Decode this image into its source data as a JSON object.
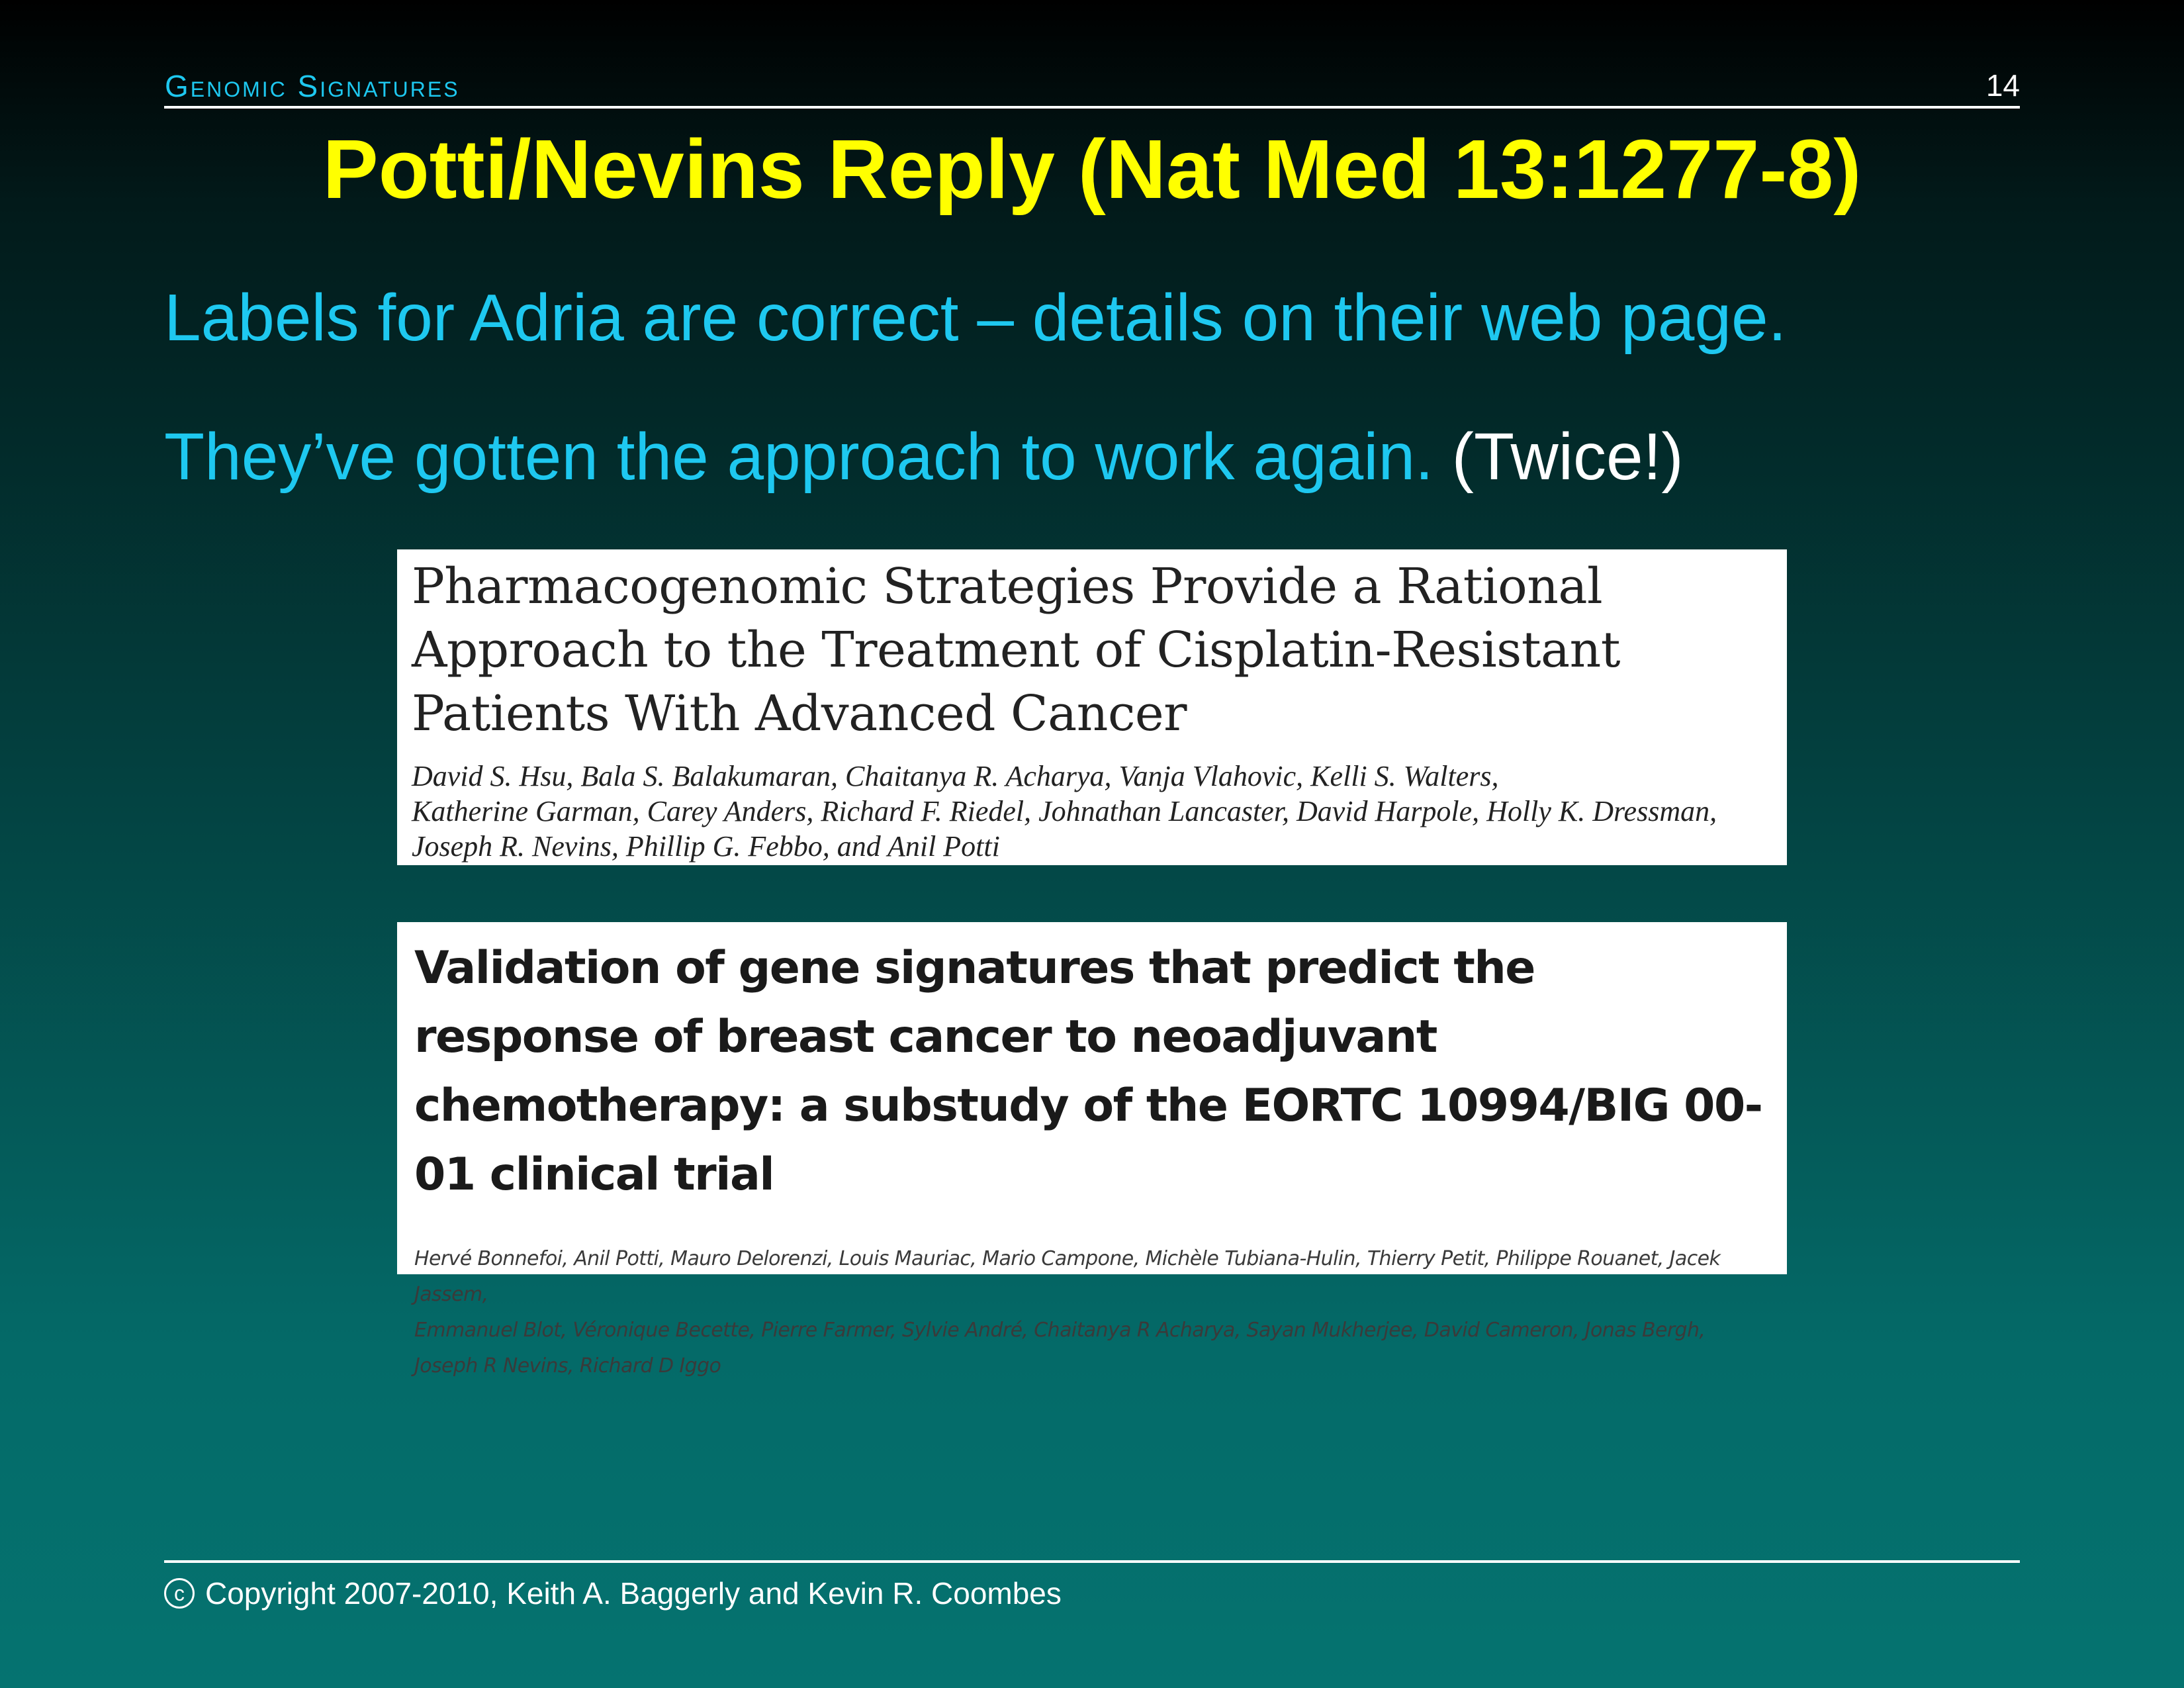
{
  "header": {
    "section": "Genomic Signatures",
    "page_number": "14"
  },
  "slide": {
    "title": "Potti/Nevins Reply (Nat Med 13:1277-8)",
    "bullets": [
      {
        "text": "Labels for Adria are correct – details on their web page."
      },
      {
        "text": "They’ve gotten the approach to work again. ",
        "highlight": "(Twice!)"
      }
    ]
  },
  "papers": [
    {
      "title": "Pharmacogenomic Strategies Provide a Rational Approach to the Treatment of Cisplatin-Resistant Patients With Advanced Cancer",
      "authors": "David S. Hsu, Bala S. Balakumaran, Chaitanya R. Acharya, Vanja Vlahovic, Kelli S. Walters,\nKatherine Garman, Carey Anders, Richard F. Riedel, Johnathan Lancaster, David Harpole, Holly K. Dressman,\nJoseph R. Nevins, Phillip G. Febbo, and Anil Potti"
    },
    {
      "title": "Validation of gene signatures that predict the response of breast cancer to neoadjuvant chemotherapy: a substudy of the EORTC 10994/BIG 00-01 clinical trial",
      "authors": "Hervé Bonnefoi, Anil Potti, Mauro Delorenzi, Louis Mauriac, Mario Campone, Michèle Tubiana-Hulin, Thierry Petit, Philippe Rouanet, Jacek Jassem,\nEmmanuel Blot, Véronique Becette, Pierre Farmer, Sylvie André, Chaitanya R Acharya, Sayan Mukherjee, David Cameron, Jonas Bergh,\nJoseph R Nevins, Richard D Iggo"
    }
  ],
  "footer": {
    "copyright_icon": "copyright-icon",
    "copyright_symbol": "c",
    "text": "Copyright 2007-2010, Keith A. Baggerly and Kevin R. Coombes"
  },
  "colors": {
    "title": "#ffff00",
    "body_text": "#1ec8f0",
    "header_section": "#1ec8f0",
    "rule": "#ffffff"
  }
}
